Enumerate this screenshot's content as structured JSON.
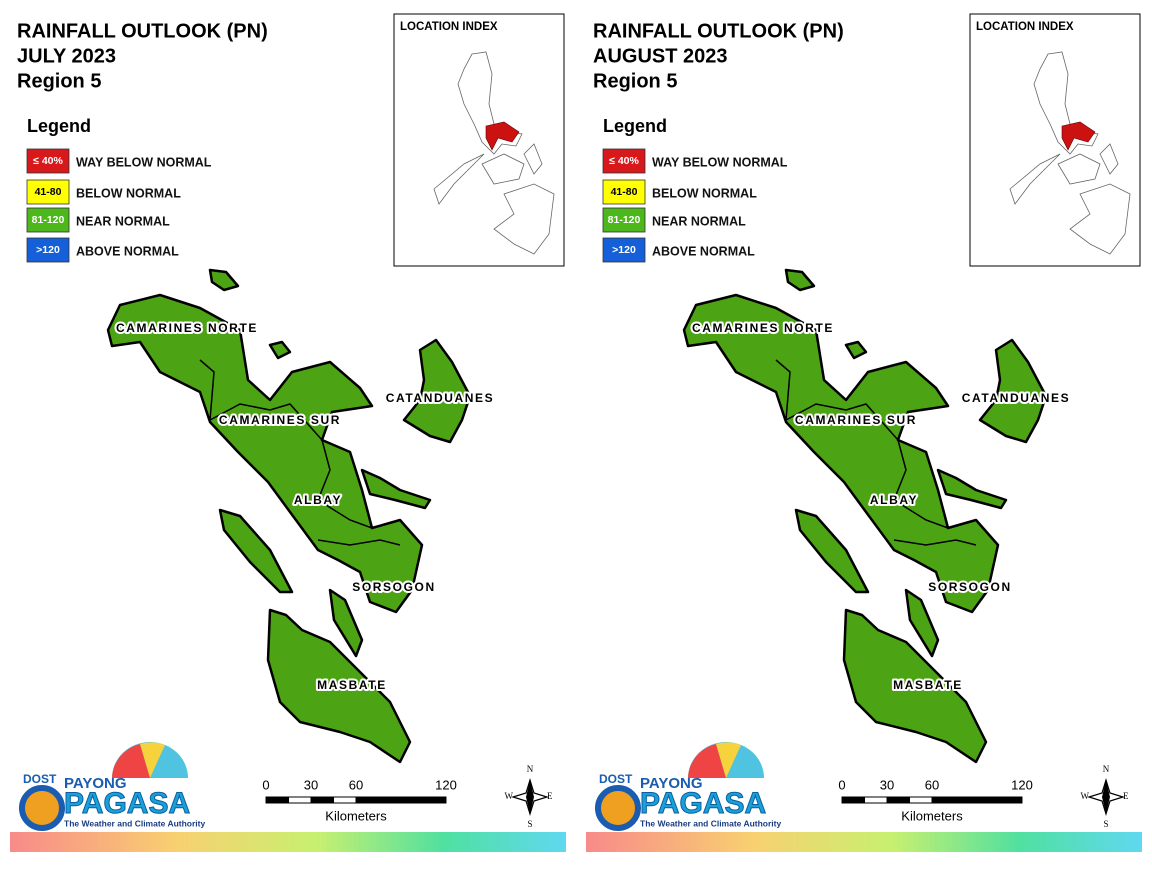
{
  "panels": [
    {
      "title": [
        "RAINFALL OUTLOOK (PN)",
        "JULY 2023",
        "Region 5"
      ],
      "legend": {
        "title": "Legend",
        "items": [
          {
            "range": "≤ 40%",
            "label": "WAY BELOW NORMAL",
            "color": "#d7191c"
          },
          {
            "range": "41-80",
            "label": "BELOW NORMAL",
            "color": "#ffff00"
          },
          {
            "range": "81-120",
            "label": "NEAR NORMAL",
            "color": "#4cb81c"
          },
          {
            "range": ">120",
            "label": "ABOVE NORMAL",
            "color": "#1560d8"
          }
        ]
      },
      "location_index": "LOCATION INDEX",
      "provinces": [
        "CAMARINES NORTE",
        "CAMARINES SUR",
        "CATANDUANES",
        "ALBAY",
        "SORSOGON",
        "MASBATE"
      ],
      "scale": {
        "ticks": [
          0,
          30,
          60,
          120
        ],
        "unit": "Kilometers"
      },
      "compass": [
        "N",
        "E",
        "S",
        "W"
      ],
      "logo": {
        "dost": "DOST",
        "payong": "PAYONG",
        "pagasa": "PAGASA",
        "tagline": "The Weather and Climate Authority"
      }
    },
    {
      "title": [
        "RAINFALL OUTLOOK (PN)",
        "AUGUST 2023",
        "Region 5"
      ],
      "legend": {
        "title": "Legend",
        "items": [
          {
            "range": "≤ 40%",
            "label": "WAY BELOW NORMAL",
            "color": "#d7191c"
          },
          {
            "range": "41-80",
            "label": "BELOW NORMAL",
            "color": "#ffff00"
          },
          {
            "range": "81-120",
            "label": "NEAR NORMAL",
            "color": "#4cb81c"
          },
          {
            "range": ">120",
            "label": "ABOVE NORMAL",
            "color": "#1560d8"
          }
        ]
      },
      "location_index": "LOCATION INDEX",
      "provinces": [
        "CAMARINES NORTE",
        "CAMARINES SUR",
        "CATANDUANES",
        "ALBAY",
        "SORSOGON",
        "MASBATE"
      ],
      "scale": {
        "ticks": [
          0,
          30,
          60,
          120
        ],
        "unit": "Kilometers"
      },
      "compass": [
        "N",
        "E",
        "S",
        "W"
      ],
      "logo": {
        "dost": "DOST",
        "payong": "PAYONG",
        "pagasa": "PAGASA",
        "tagline": "The Weather and Climate Authority"
      }
    }
  ]
}
